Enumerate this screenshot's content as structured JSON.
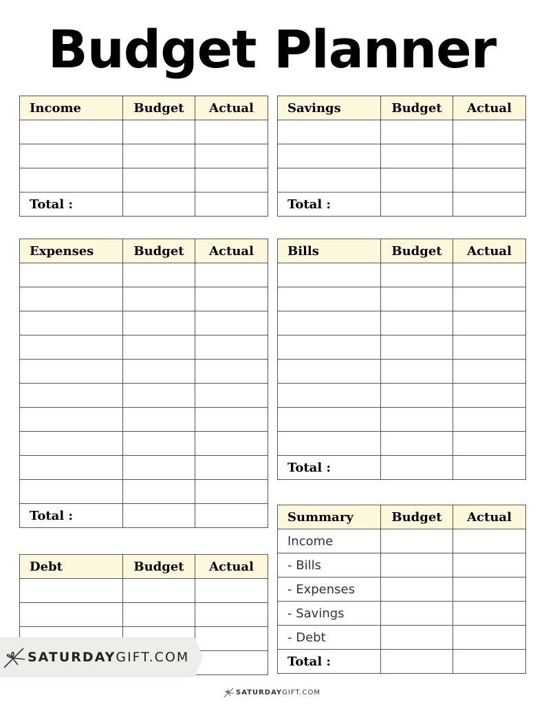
{
  "title": "Budget Planner",
  "header_color": "#fdf8dc",
  "columns": [
    "Budget",
    "Actual"
  ],
  "total_label": "Total :",
  "tables": {
    "income": {
      "name": "Income",
      "blank_rows": 3,
      "items": [],
      "has_total": true
    },
    "savings": {
      "name": "Savings",
      "blank_rows": 3,
      "items": [],
      "has_total": true
    },
    "expenses": {
      "name": "Expenses",
      "blank_rows": 10,
      "items": [],
      "has_total": true
    },
    "bills": {
      "name": "Bills",
      "blank_rows": 8,
      "items": [],
      "has_total": true
    },
    "debt": {
      "name": "Debt",
      "blank_rows": 4,
      "items": [],
      "has_total": false
    },
    "summary": {
      "name": "Summary",
      "blank_rows": 0,
      "items": [
        "Income",
        " - Bills",
        " - Expenses",
        " - Savings",
        " - Debt"
      ],
      "has_total": true
    }
  },
  "watermark": {
    "bold": "SATURDAY",
    "light": "GIFT.COM",
    "icon": "bow-icon"
  },
  "footer": {
    "bold": "SATURDAY",
    "light": "GIFT.COM",
    "icon": "bow-icon"
  }
}
